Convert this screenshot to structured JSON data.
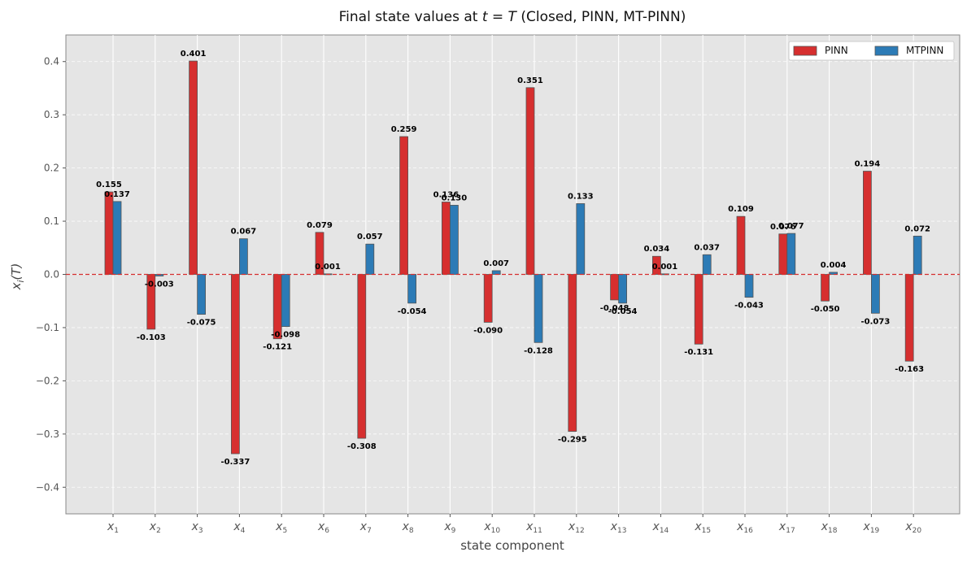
{
  "chart_data": {
    "type": "bar",
    "title_prefix": "Final state values at ",
    "title_math": "t = T",
    "title_suffix": " (Closed, PINN, MT-PINN)",
    "xlabel": "state component",
    "ylabel_var": "x",
    "ylabel_sub": "i",
    "ylabel_arg": "(T)",
    "category_var": "x",
    "categories": [
      "1",
      "2",
      "3",
      "4",
      "5",
      "6",
      "7",
      "8",
      "9",
      "10",
      "11",
      "12",
      "13",
      "14",
      "15",
      "16",
      "17",
      "18",
      "19",
      "20"
    ],
    "ylim": [
      -0.45,
      0.45
    ],
    "yticks": [
      -0.4,
      -0.3,
      -0.2,
      -0.1,
      0.0,
      0.1,
      0.2,
      0.3,
      0.4
    ],
    "ytick_labels": [
      "−0.4",
      "−0.3",
      "−0.2",
      "−0.1",
      "0.0",
      "0.1",
      "0.2",
      "0.3",
      "0.4"
    ],
    "grid": true,
    "legend_position": "top-right",
    "reference_line": 0.0,
    "series": [
      {
        "name": "PINN",
        "color": "#d62f2f",
        "values": [
          0.155,
          -0.103,
          0.401,
          -0.337,
          -0.121,
          0.079,
          -0.308,
          0.259,
          0.136,
          -0.09,
          0.351,
          -0.295,
          -0.048,
          0.034,
          -0.131,
          0.109,
          0.076,
          -0.05,
          0.194,
          -0.163
        ],
        "labels": [
          "0.155",
          "-0.103",
          "0.401",
          "-0.337",
          "-0.121",
          "0.079",
          "-0.308",
          "0.259",
          "0.136",
          "-0.090",
          "0.351",
          "-0.295",
          "-0.048",
          "0.034",
          "-0.131",
          "0.109",
          "0.076",
          "-0.050",
          "0.194",
          "-0.163"
        ]
      },
      {
        "name": "MTPINN",
        "color": "#2c7bb6",
        "values": [
          0.137,
          -0.003,
          -0.075,
          0.067,
          -0.098,
          0.001,
          0.057,
          -0.054,
          0.13,
          0.007,
          -0.128,
          0.133,
          -0.054,
          0.001,
          0.037,
          -0.043,
          0.077,
          0.004,
          -0.073,
          0.072
        ],
        "labels": [
          "0.137",
          "-0.003",
          "-0.075",
          "0.067",
          "-0.098",
          "0.001",
          "0.057",
          "-0.054",
          "0.130",
          "0.007",
          "-0.128",
          "0.133",
          "-0.054",
          "0.001",
          "0.037",
          "-0.043",
          "0.077",
          "0.004",
          "-0.073",
          "0.072"
        ]
      }
    ]
  },
  "colors": {
    "plot_background": "#e5e5e5",
    "grid": "#ffffff",
    "reference_line": "#d62f2f",
    "bar_edge": "#555555"
  }
}
